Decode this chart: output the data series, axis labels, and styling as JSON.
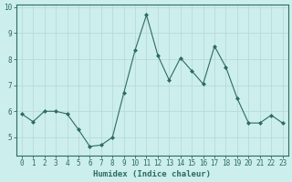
{
  "x": [
    0,
    1,
    2,
    3,
    4,
    5,
    6,
    7,
    8,
    9,
    10,
    11,
    12,
    13,
    14,
    15,
    16,
    17,
    18,
    19,
    20,
    21,
    22,
    23
  ],
  "y": [
    5.9,
    5.6,
    6.0,
    6.0,
    5.9,
    5.3,
    4.65,
    4.7,
    5.0,
    6.7,
    8.35,
    9.7,
    8.15,
    7.2,
    8.05,
    7.55,
    7.05,
    8.5,
    7.7,
    6.5,
    5.55,
    5.55,
    5.85,
    5.55
  ],
  "line_color": "#2e6b5e",
  "marker": "D",
  "marker_size": 2.0,
  "bg_color": "#cceeed",
  "grid_color": "#b8dada",
  "xlabel": "Humidex (Indice chaleur)",
  "ylim": [
    4.3,
    10.1
  ],
  "xlim": [
    -0.5,
    23.5
  ],
  "yticks": [
    5,
    6,
    7,
    8,
    9,
    10
  ],
  "xticks": [
    0,
    1,
    2,
    3,
    4,
    5,
    6,
    7,
    8,
    9,
    10,
    11,
    12,
    13,
    14,
    15,
    16,
    17,
    18,
    19,
    20,
    21,
    22,
    23
  ],
  "xlabel_fontsize": 6.5,
  "tick_fontsize": 5.5,
  "line_width": 0.8
}
